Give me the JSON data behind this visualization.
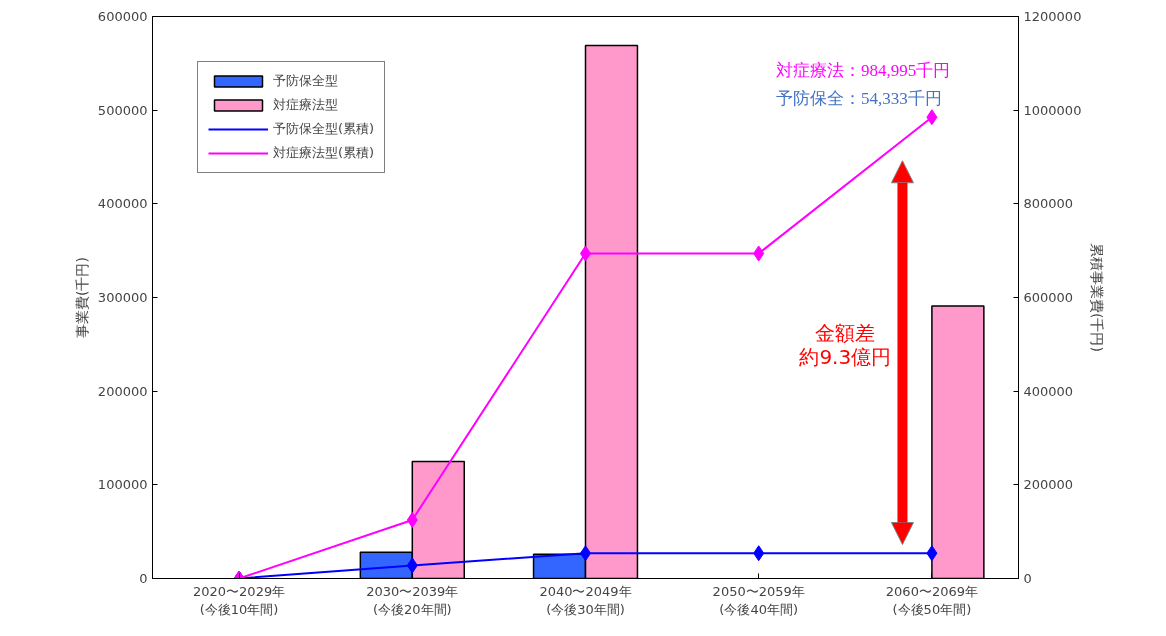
{
  "chart_data": {
    "type": "bar",
    "categories": [
      "2020〜2029年\n(今後10年間)",
      "2030〜2039年\n(今後20年間)",
      "2040〜2049年\n(今後30年間)",
      "2050〜2059年\n(今後40年間)",
      "2060〜2069年\n(今後50年間)"
    ],
    "ylabel": "事業費(千円)",
    "y2label": "累積事業費(千円)",
    "ylim": [
      0,
      600000
    ],
    "yticks": [
      0,
      100000,
      200000,
      300000,
      400000,
      500000,
      600000
    ],
    "y2lim": [
      0,
      1200000
    ],
    "y2ticks": [
      0,
      200000,
      400000,
      600000,
      800000,
      1000000,
      1200000
    ],
    "series": [
      {
        "name": "予防保全型",
        "color": "#3366ff",
        "values": [
          0,
          28000,
          26000,
          0,
          0
        ]
      },
      {
        "name": "対症療法型",
        "color": "#ff99cc",
        "values": [
          0,
          125000,
          569000,
          0,
          291000
        ]
      },
      {
        "name": "予防保全型(累積)",
        "type": "line",
        "axis": "y2",
        "color": "#0000ff",
        "marker": "diamond",
        "values": [
          0,
          28000,
          54000,
          54000,
          54000
        ]
      },
      {
        "name": "対症療法型(累積)",
        "type": "line",
        "axis": "y2",
        "color": "#ff00ff",
        "marker": "diamond",
        "values": [
          0,
          125000,
          694000,
          694000,
          985000
        ]
      }
    ],
    "annotations": [
      "対症療法：984,995千円",
      "予防保全：54,333千円",
      "金額差",
      "約9.3億円"
    ],
    "legend": "top left",
    "grid": false
  }
}
